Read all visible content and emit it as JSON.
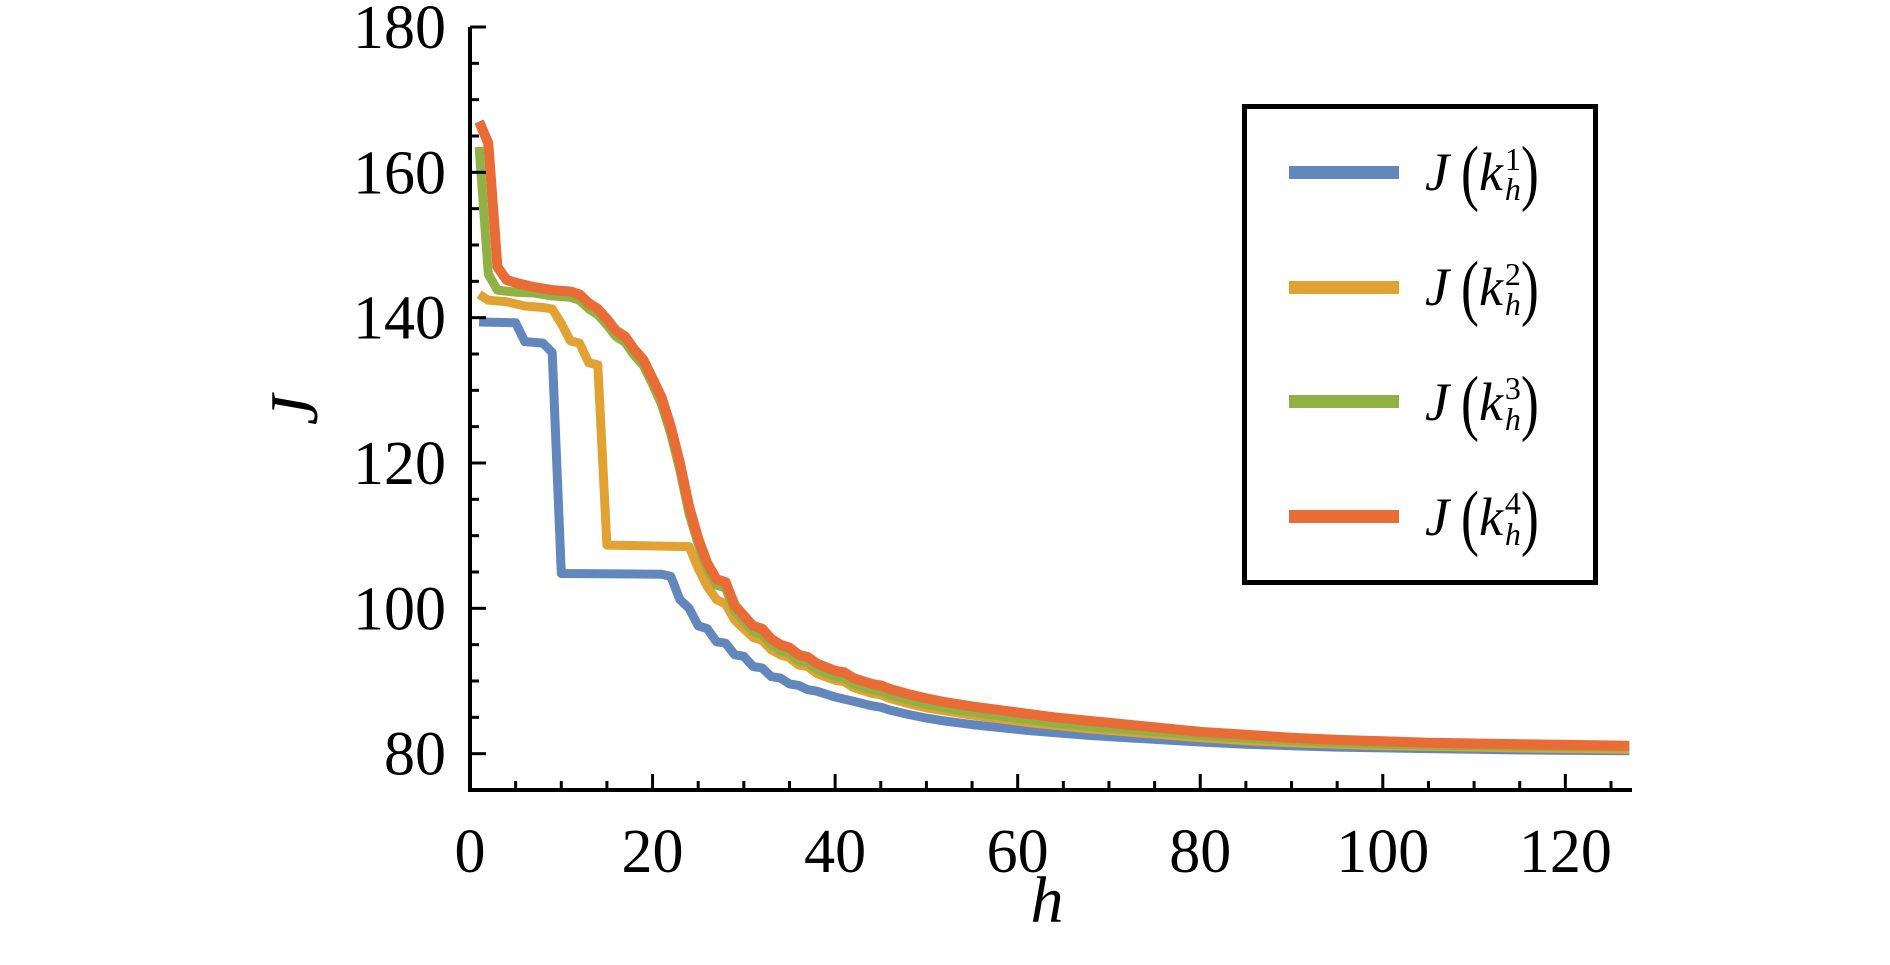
{
  "figure": {
    "background": "#ffffff",
    "axis_color": "#000000"
  },
  "legend": {
    "items": [
      {
        "func": "J",
        "open": "(",
        "var": "k",
        "sup": "1",
        "sub": "h",
        "close": ")"
      },
      {
        "func": "J",
        "open": "(",
        "var": "k",
        "sup": "2",
        "sub": "h",
        "close": ")"
      },
      {
        "func": "J",
        "open": "(",
        "var": "k",
        "sup": "3",
        "sub": "h",
        "close": ")"
      },
      {
        "func": "J",
        "open": "(",
        "var": "k",
        "sup": "4",
        "sub": "h",
        "close": ")"
      }
    ]
  },
  "chart_data": {
    "type": "line",
    "title": "",
    "xlabel": "h",
    "ylabel": "J",
    "grid": false,
    "legend_position": "upper-right",
    "x_axis": {
      "range": [
        0,
        127.3
      ],
      "major_ticks": [
        0,
        20,
        40,
        60,
        80,
        100,
        120
      ],
      "minor_step": 5
    },
    "y_axis": {
      "range": [
        75,
        180
      ],
      "major_ticks": [
        80,
        100,
        120,
        140,
        160,
        180
      ],
      "minor_step": 5
    },
    "series": [
      {
        "name": "J(k_h^1)",
        "color": "#6287BD",
        "width": 9,
        "points": [
          [
            1,
            139.4
          ],
          [
            5,
            139.3
          ],
          [
            6,
            136.7
          ],
          [
            8,
            136.5
          ],
          [
            9,
            135.2
          ],
          [
            10,
            104.8
          ],
          [
            21,
            104.7
          ],
          [
            22,
            104.4
          ],
          [
            23,
            101.2
          ],
          [
            24,
            100
          ],
          [
            25,
            97.6
          ],
          [
            26,
            97.2
          ],
          [
            27,
            95.4
          ],
          [
            28,
            95.2
          ],
          [
            29,
            93.6
          ],
          [
            30,
            93.4
          ],
          [
            31,
            92
          ],
          [
            32,
            91.8
          ],
          [
            33,
            90.6
          ],
          [
            34,
            90.4
          ],
          [
            35,
            89.6
          ],
          [
            36,
            89.4
          ],
          [
            37,
            88.8
          ],
          [
            38,
            88.6
          ],
          [
            40,
            87.8
          ],
          [
            42,
            87.2
          ],
          [
            44,
            86.6
          ],
          [
            45,
            86.4
          ],
          [
            46,
            86
          ],
          [
            48,
            85.4
          ],
          [
            50,
            84.9
          ],
          [
            52,
            84.5
          ],
          [
            55,
            84
          ],
          [
            58,
            83.6
          ],
          [
            61,
            83.2
          ],
          [
            64,
            82.9
          ],
          [
            68,
            82.5
          ],
          [
            72,
            82.2
          ],
          [
            76,
            81.9
          ],
          [
            80,
            81.6
          ],
          [
            85,
            81.3
          ],
          [
            90,
            81.1
          ],
          [
            95,
            80.9
          ],
          [
            100,
            80.8
          ],
          [
            105,
            80.7
          ],
          [
            110,
            80.6
          ],
          [
            115,
            80.5
          ],
          [
            127,
            80.4
          ]
        ]
      },
      {
        "name": "J(k_h^2)",
        "color": "#E2A233",
        "width": 9,
        "points": [
          [
            1,
            143.2
          ],
          [
            2,
            142.4
          ],
          [
            4,
            142.2
          ],
          [
            5,
            141.9
          ],
          [
            6,
            141.6
          ],
          [
            8,
            141.4
          ],
          [
            9,
            141.2
          ],
          [
            10,
            139.2
          ],
          [
            11,
            136.8
          ],
          [
            12,
            136.5
          ],
          [
            13,
            133.8
          ],
          [
            14,
            133.5
          ],
          [
            15,
            108.7
          ],
          [
            24,
            108.5
          ],
          [
            25,
            105.5
          ],
          [
            26,
            103
          ],
          [
            27,
            101.2
          ],
          [
            28,
            100.6
          ],
          [
            29,
            98.4
          ],
          [
            30,
            97.2
          ],
          [
            31,
            96
          ],
          [
            32,
            95.6
          ],
          [
            33,
            94.3
          ],
          [
            34,
            93.6
          ],
          [
            35,
            93.2
          ],
          [
            36,
            92.2
          ],
          [
            37,
            92
          ],
          [
            38,
            91
          ],
          [
            40,
            90.1
          ],
          [
            41,
            89.9
          ],
          [
            42,
            89.1
          ],
          [
            44,
            88.3
          ],
          [
            45,
            88.1
          ],
          [
            46,
            87.6
          ],
          [
            48,
            86.9
          ],
          [
            50,
            86.3
          ],
          [
            52,
            85.9
          ],
          [
            55,
            85.3
          ],
          [
            58,
            84.8
          ],
          [
            61,
            84.3
          ],
          [
            64,
            83.9
          ],
          [
            68,
            83.4
          ],
          [
            72,
            83
          ],
          [
            76,
            82.6
          ],
          [
            80,
            82.2
          ],
          [
            85,
            81.8
          ],
          [
            90,
            81.5
          ],
          [
            95,
            81.3
          ],
          [
            100,
            81.1
          ],
          [
            105,
            81
          ],
          [
            110,
            80.9
          ],
          [
            115,
            80.8
          ],
          [
            127,
            80.6
          ]
        ]
      },
      {
        "name": "J(k_h^3)",
        "color": "#90B245",
        "width": 9,
        "points": [
          [
            1,
            163.5
          ],
          [
            2,
            146
          ],
          [
            3,
            143.8
          ],
          [
            5,
            143.5
          ],
          [
            7,
            143.4
          ],
          [
            9,
            143
          ],
          [
            11,
            142.8
          ],
          [
            12,
            142.4
          ],
          [
            13,
            141.2
          ],
          [
            14,
            140.4
          ],
          [
            15,
            139
          ],
          [
            16,
            137.4
          ],
          [
            17,
            136.6
          ],
          [
            18,
            134.8
          ],
          [
            19,
            133.4
          ],
          [
            20,
            130.8
          ],
          [
            21,
            128
          ],
          [
            22,
            124
          ],
          [
            23,
            119
          ],
          [
            24,
            113
          ],
          [
            25,
            108.8
          ],
          [
            26,
            105.4
          ],
          [
            27,
            103.2
          ],
          [
            28,
            102.8
          ],
          [
            29,
            99.6
          ],
          [
            30,
            98.2
          ],
          [
            31,
            96.8
          ],
          [
            32,
            96.4
          ],
          [
            33,
            95
          ],
          [
            34,
            94.2
          ],
          [
            35,
            93.8
          ],
          [
            36,
            92.8
          ],
          [
            37,
            92.5
          ],
          [
            38,
            91.6
          ],
          [
            40,
            90.6
          ],
          [
            41,
            90.4
          ],
          [
            42,
            89.6
          ],
          [
            44,
            88.8
          ],
          [
            45,
            88.6
          ],
          [
            46,
            88.1
          ],
          [
            48,
            87.4
          ],
          [
            50,
            86.8
          ],
          [
            52,
            86.3
          ],
          [
            55,
            85.7
          ],
          [
            58,
            85.2
          ],
          [
            61,
            84.7
          ],
          [
            64,
            84.2
          ],
          [
            68,
            83.7
          ],
          [
            72,
            83.3
          ],
          [
            76,
            82.9
          ],
          [
            80,
            82.5
          ],
          [
            85,
            82.1
          ],
          [
            90,
            81.8
          ],
          [
            95,
            81.5
          ],
          [
            100,
            81.3
          ],
          [
            105,
            81.2
          ],
          [
            110,
            81.1
          ],
          [
            115,
            81
          ],
          [
            127,
            80.9
          ]
        ]
      },
      {
        "name": "J(k_h^4)",
        "color": "#E96B35",
        "width": 10,
        "points": [
          [
            1,
            167
          ],
          [
            2,
            164
          ],
          [
            3,
            147
          ],
          [
            4,
            145.2
          ],
          [
            5,
            144.8
          ],
          [
            7,
            144.2
          ],
          [
            9,
            143.8
          ],
          [
            11,
            143.6
          ],
          [
            12,
            143.2
          ],
          [
            13,
            142
          ],
          [
            14,
            141.2
          ],
          [
            15,
            139.8
          ],
          [
            16,
            138.2
          ],
          [
            17,
            137.4
          ],
          [
            18,
            135.6
          ],
          [
            19,
            134.2
          ],
          [
            20,
            131.6
          ],
          [
            21,
            129
          ],
          [
            22,
            125
          ],
          [
            23,
            120
          ],
          [
            24,
            114
          ],
          [
            25,
            109.6
          ],
          [
            26,
            106.2
          ],
          [
            27,
            104
          ],
          [
            28,
            103.6
          ],
          [
            29,
            100.4
          ],
          [
            30,
            99
          ],
          [
            31,
            97.6
          ],
          [
            32,
            97.2
          ],
          [
            33,
            95.8
          ],
          [
            34,
            95
          ],
          [
            35,
            94.6
          ],
          [
            36,
            93.6
          ],
          [
            37,
            93.3
          ],
          [
            38,
            92.4
          ],
          [
            40,
            91.4
          ],
          [
            41,
            91.2
          ],
          [
            42,
            90.4
          ],
          [
            44,
            89.6
          ],
          [
            45,
            89.4
          ],
          [
            46,
            88.9
          ],
          [
            48,
            88.2
          ],
          [
            50,
            87.6
          ],
          [
            52,
            87.1
          ],
          [
            55,
            86.5
          ],
          [
            58,
            86
          ],
          [
            61,
            85.5
          ],
          [
            64,
            85
          ],
          [
            68,
            84.5
          ],
          [
            72,
            84
          ],
          [
            76,
            83.5
          ],
          [
            80,
            83
          ],
          [
            85,
            82.6
          ],
          [
            90,
            82.2
          ],
          [
            95,
            81.9
          ],
          [
            100,
            81.7
          ],
          [
            105,
            81.5
          ],
          [
            110,
            81.4
          ],
          [
            115,
            81.3
          ],
          [
            127,
            81.1
          ]
        ]
      }
    ]
  }
}
